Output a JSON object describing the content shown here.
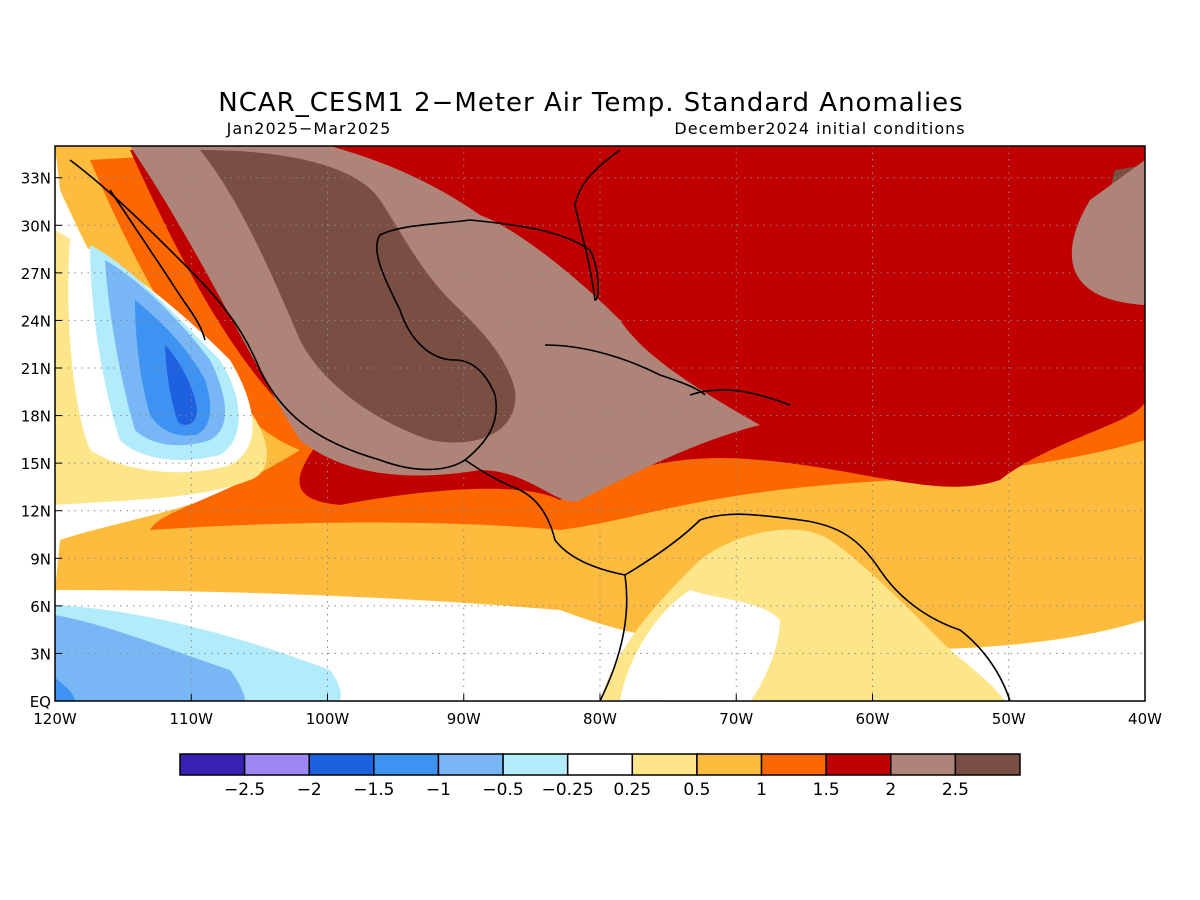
{
  "title": "NCAR_CESM1 2−Meter Air Temp. Standard Anomalies",
  "period": "Jan2025−Mar2025",
  "init": "December2024 initial conditions",
  "colors": {
    "lt_m25": "#3a1fb3",
    "m25_m2": "#9d87f5",
    "m2_m15": "#1d60e0",
    "m15_m1": "#3e93f2",
    "m1_m05": "#79b6f6",
    "m05_m025": "#b2ecfb",
    "neutral": "#ffffff",
    "p025_p05": "#fde58a",
    "p05_p1": "#fdbc3e",
    "p1_p15": "#fc6700",
    "p15_p2": "#c00000",
    "p2_p25": "#ad8477",
    "gt_p25": "#7a4f43"
  },
  "map": {
    "lon_range": [
      -120,
      -40
    ],
    "lat_range": [
      0,
      35
    ],
    "x_ticks": [
      "120W",
      "110W",
      "100W",
      "90W",
      "80W",
      "70W",
      "60W",
      "50W",
      "40W"
    ],
    "y_ticks": [
      "EQ",
      "3N",
      "6N",
      "9N",
      "12N",
      "15N",
      "18N",
      "21N",
      "24N",
      "27N",
      "30N",
      "33N"
    ],
    "grid": "dotted"
  },
  "colorbar": {
    "labels": [
      "−2.5",
      "−2",
      "−1.5",
      "−1",
      "−0.5",
      "−0.25",
      "0.25",
      "0.5",
      "1",
      "1.5",
      "2",
      "2.5"
    ],
    "colors": [
      "#3a1fb3",
      "#9d87f5",
      "#1d60e0",
      "#3e93f2",
      "#79b6f6",
      "#b2ecfb",
      "#ffffff",
      "#fde58a",
      "#fdbc3e",
      "#fc6700",
      "#c00000",
      "#ad8477",
      "#7a4f43"
    ]
  }
}
